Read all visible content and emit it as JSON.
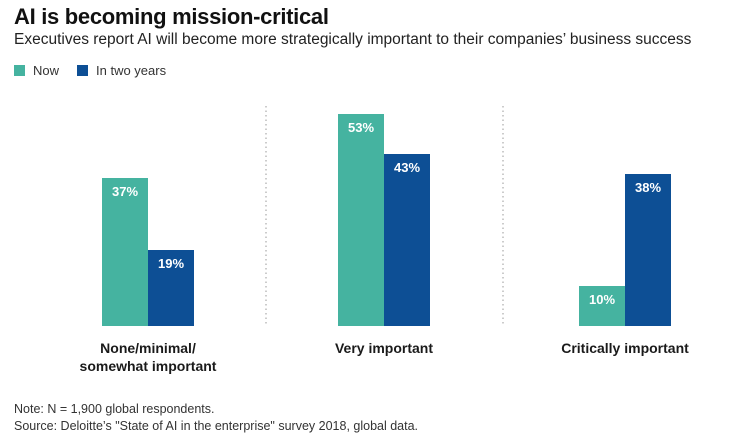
{
  "title": "AI is becoming mission-critical",
  "subtitle": "Executives report AI will become more strategically important to their companies’ business success",
  "legend": [
    {
      "label": "Now",
      "color": "#45b3a0"
    },
    {
      "label": "In two years",
      "color": "#0d4f95"
    }
  ],
  "note": "Note: N = 1,900 global respondents.",
  "source": "Source: Deloitte’s \"State of AI in the enterprise\" survey 2018, global data.",
  "chart_data": {
    "type": "bar",
    "title": "AI is becoming mission-critical",
    "xlabel": "",
    "ylabel": "",
    "ylim": [
      0,
      60
    ],
    "grid": false,
    "legend_position": "top-left",
    "categories": [
      [
        "None/minimal/",
        "somewhat important"
      ],
      [
        "Very important"
      ],
      [
        "Critically important"
      ]
    ],
    "series": [
      {
        "name": "Now",
        "color": "#45b3a0",
        "values": [
          37,
          53,
          10
        ],
        "labels": [
          "37%",
          "53%",
          "10%"
        ]
      },
      {
        "name": "In two years",
        "color": "#0d4f95",
        "values": [
          19,
          43,
          38
        ],
        "labels": [
          "19%",
          "43%",
          "38%"
        ]
      }
    ]
  }
}
